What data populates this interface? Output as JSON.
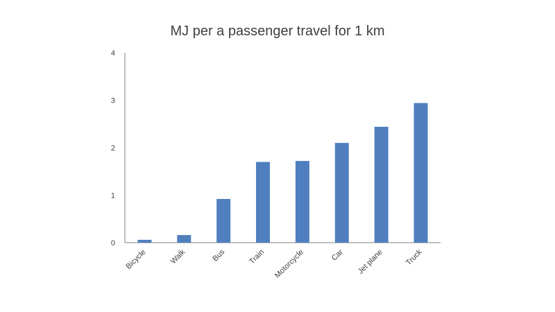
{
  "chart_data": {
    "type": "bar",
    "title": "MJ per a passenger travel for 1 km",
    "xlabel": "",
    "ylabel": "",
    "categories": [
      "Bicycle",
      "Walk",
      "Bus",
      "Train",
      "Motorcycle",
      "Car",
      "Jet plane",
      "Truck"
    ],
    "values": [
      0.06,
      0.16,
      0.92,
      1.7,
      1.72,
      2.1,
      2.44,
      2.94
    ],
    "ylim": [
      0,
      4
    ],
    "yticks": [
      "0",
      "1",
      "2",
      "3",
      "4"
    ],
    "grid": false,
    "legend": "none",
    "bar_color": "#4f7fbf",
    "axis_color": "#7f7f7f",
    "text_color": "#404040"
  }
}
